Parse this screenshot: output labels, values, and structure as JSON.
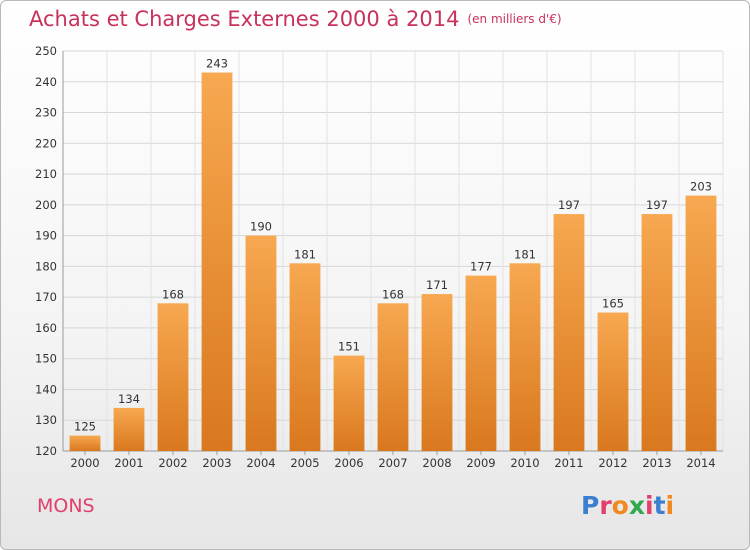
{
  "title": "Achats et Charges Externes 2000 à 2014",
  "subtitle": "(en milliers d'€)",
  "city": "MONS",
  "brand": {
    "text": "Proxiti",
    "colors": [
      "#3a7fd0",
      "#e0406a",
      "#f08a20",
      "#2fa84f",
      "#e0406a",
      "#3a7fd0",
      "#f08a20"
    ]
  },
  "colors": {
    "bar_light": "#f7a850",
    "bar_dark": "#d9781e",
    "title": "#c8325a"
  },
  "chart_data": {
    "type": "bar",
    "categories": [
      "2000",
      "2001",
      "2002",
      "2003",
      "2004",
      "2005",
      "2006",
      "2007",
      "2008",
      "2009",
      "2010",
      "2011",
      "2012",
      "2013",
      "2014"
    ],
    "values": [
      125,
      134,
      168,
      243,
      190,
      181,
      151,
      168,
      171,
      177,
      181,
      197,
      165,
      197,
      203
    ],
    "ylim": [
      120,
      250
    ],
    "yticks": [
      120,
      130,
      140,
      150,
      160,
      170,
      180,
      190,
      200,
      210,
      220,
      230,
      240,
      250
    ],
    "grid": true,
    "legend": "none"
  }
}
